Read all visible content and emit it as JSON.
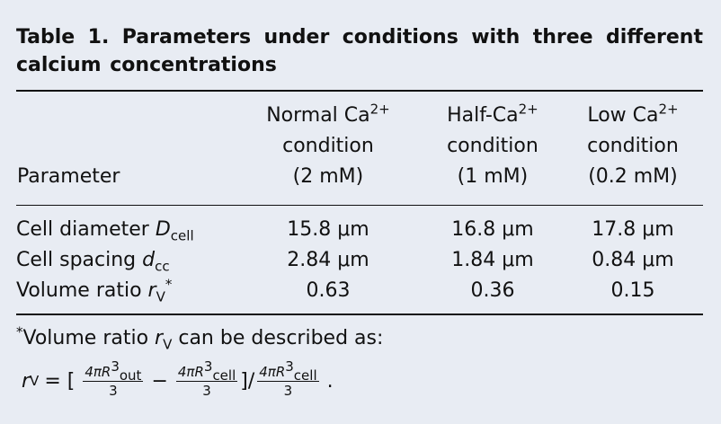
{
  "caption": "Table 1. Parameters under conditions with three different calcium concentrations",
  "header": {
    "parameter": "Parameter",
    "columns": [
      {
        "line1": "Normal Ca",
        "sup": "2+",
        "line2": "condition",
        "line3": "(2 mM)"
      },
      {
        "line1": "Half-Ca",
        "sup": "2+",
        "line2": "condition",
        "line3": "(1 mM)"
      },
      {
        "line1": "Low Ca",
        "sup": "2+",
        "line2": "condition",
        "line3": "(0.2 mM)"
      }
    ]
  },
  "rows": [
    {
      "label": "Cell diameter ",
      "sym": "D",
      "sub": "cell",
      "sup": "",
      "values": [
        "15.8 μm",
        "16.8 μm",
        "17.8 μm"
      ]
    },
    {
      "label": "Cell spacing ",
      "sym": "d",
      "sub": "cc",
      "sup": "",
      "values": [
        "2.84 μm",
        "1.84 μm",
        "0.84 μm"
      ]
    },
    {
      "label": "Volume ratio ",
      "sym": "r",
      "sub": "V",
      "sup": "*",
      "values": [
        "0.63",
        "0.36",
        "0.15"
      ]
    }
  ],
  "footnote": {
    "star": "*",
    "text": "Volume ratio ",
    "sym": "r",
    "sub": "V",
    "tail": " can be described as:"
  },
  "formula": {
    "lhs_sym": "r",
    "lhs_sub": "V",
    "eq": "= [",
    "frac1_num": "4πR",
    "frac1_sup": "3",
    "frac1_sub": "out",
    "frac1_den": "3",
    "minus": "−",
    "frac2_num": "4πR",
    "frac2_sup": "3",
    "frac2_sub": "cell",
    "frac2_den": "3",
    "slash": "]/",
    "frac3_num": "4πR",
    "frac3_sup": "3",
    "frac3_sub": "cell",
    "frac3_den": "3",
    "end": "."
  }
}
